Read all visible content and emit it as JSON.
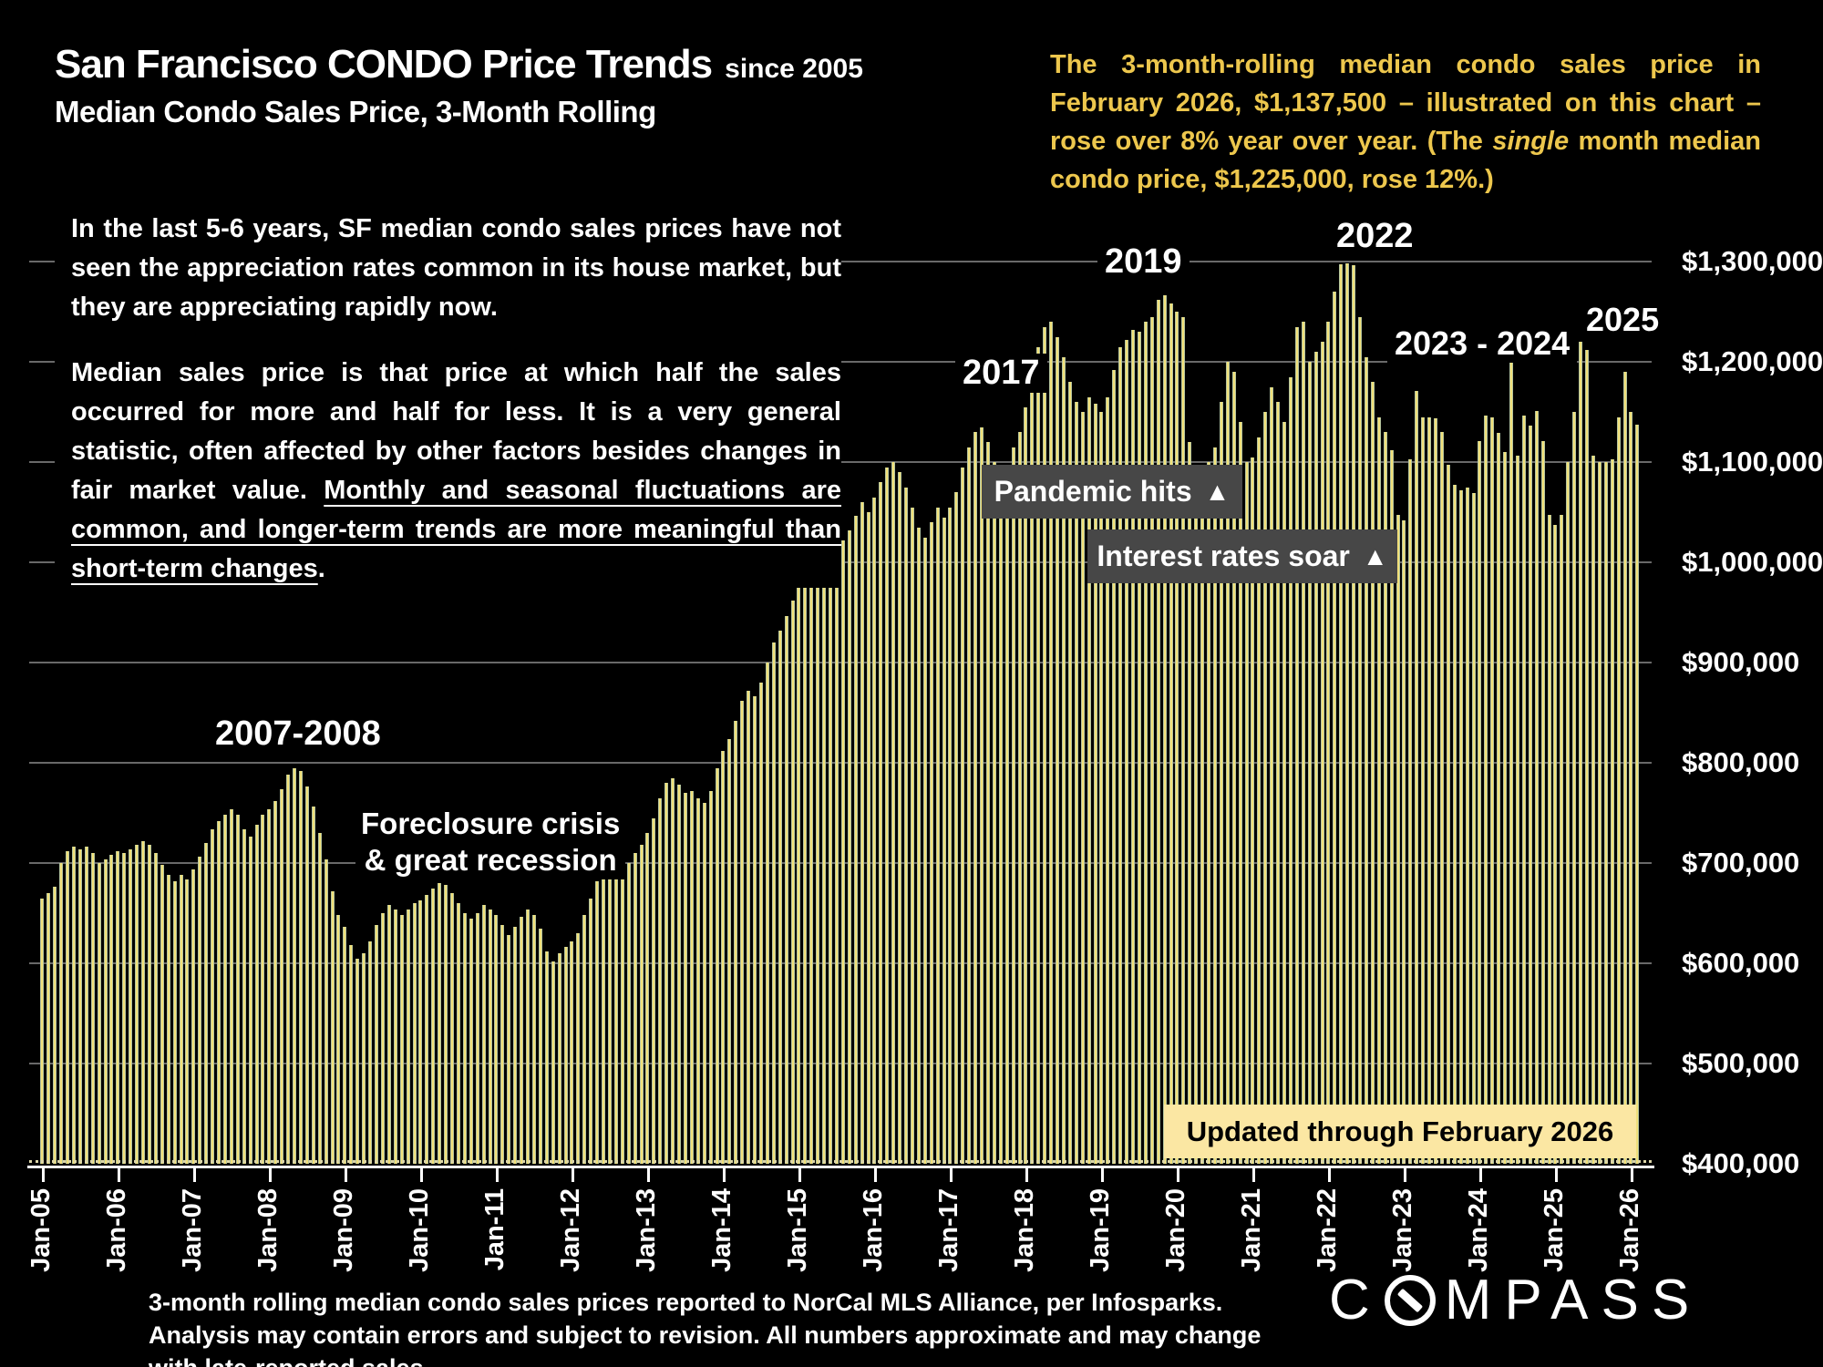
{
  "header": {
    "title": "San Francisco CONDO Price Trends",
    "title_suffix": "since 2005",
    "subtitle": "Median Condo Sales Price, 3-Month Rolling"
  },
  "note": {
    "segments": [
      {
        "t": "The 3-month-rolling median condo sales price in February 2026, $1,137,500 – illustrated on this chart – rose over 8% year over year. (The ",
        "i": false
      },
      {
        "t": "single",
        "i": true
      },
      {
        "t": " month median condo price, $1,225,000, rose 12%.)",
        "i": false
      }
    ]
  },
  "para1": "In the last 5-6 years, SF median condo sales prices have not seen the appreciation rates common in its house market, but they are appreciating rapidly now.",
  "para2": {
    "segments": [
      {
        "t": "Median sales price is that price at which half the sales occurred for more and half for less. It is a very general statistic, often affected by other factors besides changes in fair market value. ",
        "u": false
      },
      {
        "t": "Monthly and seasonal fluctuations are common, and longer-term trends are more meaningful than short-term changes",
        "u": true
      },
      {
        "t": ".",
        "u": false
      }
    ]
  },
  "chart_data": {
    "type": "bar",
    "title": "Median Condo Sales Price, 3-Month Rolling",
    "x_start": "2005-01",
    "x_end": "2026-02",
    "x_tick_labels": [
      "Jan-05",
      "Jan-06",
      "Jan-07",
      "Jan-08",
      "Jan-09",
      "Jan-10",
      "Jan-11",
      "Jan-12",
      "Jan-13",
      "Jan-14",
      "Jan-15",
      "Jan-16",
      "Jan-17",
      "Jan-18",
      "Jan-19",
      "Jan-20",
      "Jan-21",
      "Jan-22",
      "Jan-23",
      "Jan-24",
      "Jan-25",
      "Jan-26"
    ],
    "y_ticks": [
      {
        "v": 1300000,
        "label": "$1,300,000"
      },
      {
        "v": 1200000,
        "label": "$1,200,000"
      },
      {
        "v": 1100000,
        "label": "$1,100,000"
      },
      {
        "v": 1000000,
        "label": "$1,000,000"
      },
      {
        "v": 900000,
        "label": "$900,000"
      },
      {
        "v": 800000,
        "label": "$800,000"
      },
      {
        "v": 700000,
        "label": "$700,000"
      },
      {
        "v": 600000,
        "label": "$600,000"
      },
      {
        "v": 500000,
        "label": "$500,000"
      },
      {
        "v": 400000,
        "label": "$400,000"
      }
    ],
    "ylim": [
      400000,
      1350000
    ],
    "unit": "USD",
    "grid": true,
    "values": [
      665000,
      670000,
      676000,
      700000,
      712000,
      716000,
      714000,
      716000,
      710000,
      700000,
      704000,
      708000,
      712000,
      710000,
      714000,
      718000,
      722000,
      718000,
      710000,
      698000,
      688000,
      682000,
      688000,
      684000,
      694000,
      706000,
      720000,
      734000,
      742000,
      748000,
      754000,
      748000,
      734000,
      726000,
      738000,
      748000,
      754000,
      762000,
      774000,
      788000,
      795000,
      792000,
      776000,
      756000,
      730000,
      704000,
      672000,
      648000,
      636000,
      618000,
      605000,
      610000,
      622000,
      638000,
      650000,
      658000,
      654000,
      648000,
      654000,
      660000,
      663000,
      668000,
      675000,
      680000,
      678000,
      670000,
      660000,
      650000,
      645000,
      650000,
      658000,
      654000,
      648000,
      638000,
      628000,
      636000,
      646000,
      654000,
      648000,
      635000,
      612000,
      602000,
      610000,
      616000,
      622000,
      630000,
      648000,
      665000,
      682000,
      698000,
      702000,
      698000,
      692000,
      700000,
      710000,
      718000,
      730000,
      745000,
      765000,
      780000,
      785000,
      778000,
      770000,
      772000,
      765000,
      760000,
      772000,
      795000,
      812000,
      824000,
      842000,
      862000,
      872000,
      866000,
      880000,
      900000,
      920000,
      932000,
      946000,
      962000,
      985000,
      1010000,
      1048000,
      1080000,
      1090000,
      1075000,
      1042000,
      1022000,
      1032000,
      1046000,
      1060000,
      1050000,
      1065000,
      1080000,
      1095000,
      1100000,
      1090000,
      1075000,
      1055000,
      1035000,
      1025000,
      1040000,
      1055000,
      1045000,
      1055000,
      1070000,
      1095000,
      1115000,
      1130000,
      1135000,
      1120000,
      1100000,
      1085000,
      1095000,
      1115000,
      1130000,
      1155000,
      1185000,
      1215000,
      1235000,
      1240000,
      1225000,
      1205000,
      1180000,
      1160000,
      1150000,
      1165000,
      1158000,
      1150000,
      1165000,
      1192000,
      1215000,
      1222000,
      1232000,
      1230000,
      1240000,
      1245000,
      1262000,
      1266000,
      1258000,
      1250000,
      1245000,
      1120000,
      1095000,
      1090000,
      1100000,
      1115000,
      1160000,
      1200000,
      1190000,
      1140000,
      1100000,
      1105000,
      1125000,
      1150000,
      1175000,
      1160000,
      1140000,
      1185000,
      1235000,
      1240000,
      1200000,
      1210000,
      1220000,
      1240000,
      1270000,
      1297000,
      1298000,
      1296000,
      1245000,
      1205000,
      1180000,
      1145000,
      1130000,
      1112000,
      1047000,
      1042000,
      1103000,
      1171000,
      1145000,
      1145000,
      1144000,
      1130000,
      1097000,
      1077000,
      1072000,
      1075000,
      1069000,
      1121000,
      1146000,
      1145000,
      1129000,
      1110000,
      1200000,
      1106000,
      1146000,
      1136000,
      1151000,
      1121000,
      1047000,
      1037000,
      1047000,
      1100000,
      1150000,
      1220000,
      1212000,
      1106000,
      1100000,
      1100000,
      1103000,
      1145000,
      1190000,
      1150000,
      1137500
    ],
    "annotations": {
      "era_2007_2008": "2007-2008",
      "foreclosure_line1": "Foreclosure crisis",
      "foreclosure_line2": "& great recession",
      "y2017": "2017",
      "y2019": "2019",
      "y2022": "2022",
      "y2023_2024": "2023 - 2024",
      "y2025": "2025",
      "pandemic": {
        "text": "Pandemic hits",
        "arrow": "▲"
      },
      "rates": {
        "text": "Interest rates soar",
        "arrow": "▲"
      },
      "badge": "Updated through February 2026"
    }
  },
  "footer": "3-month rolling median condo sales prices reported to NorCal MLS Alliance, per Infosparks. Analysis may contain errors and subject to revision. All numbers approximate and may change with late-reported sales.",
  "logo": {
    "pre": "C",
    "post": "MPASS"
  },
  "colors": {
    "background": "#000000",
    "bar_fill": "#f1e07a",
    "bar_edge": "#b4c49e",
    "note_text": "#edc74d",
    "gridline": "#7b7b7b",
    "dark_box": "#474747",
    "badge_bg": "#fbe7a3",
    "text": "#ffffff"
  }
}
